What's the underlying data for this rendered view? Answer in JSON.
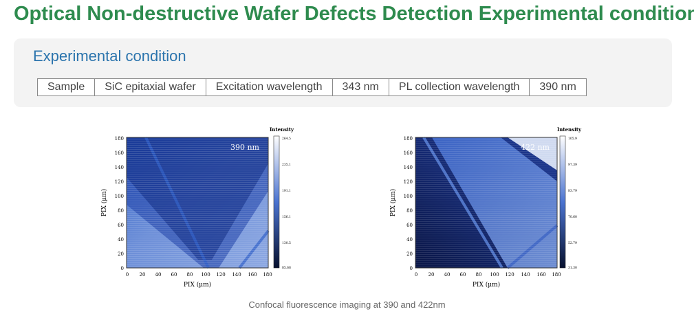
{
  "page_title": "Optical Non-destructive Wafer Defects Detection Experimental condition",
  "section_title": "Experimental condition",
  "conditions": {
    "sample_label": "Sample",
    "sample_value": "SiC epitaxial wafer",
    "excitation_label": "Excitation wavelength",
    "excitation_value": "343 nm",
    "pl_label": "PL collection wavelength",
    "pl_value": "390 nm"
  },
  "figures": [
    {
      "wavelength_label": "390  nm",
      "xlabel": "PIX (μm)",
      "ylabel": "PIX (μm)",
      "x_ticks": [
        "0",
        "20",
        "40",
        "60",
        "80",
        "100",
        "120",
        "140",
        "160",
        "180"
      ],
      "y_ticks": [
        "0",
        "20",
        "40",
        "60",
        "80",
        "100",
        "120",
        "140",
        "160",
        "180"
      ],
      "colorbar_title": "Intensity",
      "colorbar_ticks": [
        "264.5",
        "235.1",
        "191.1",
        "156.1",
        "130.5",
        "85.68"
      ]
    },
    {
      "wavelength_label": "422  nm",
      "xlabel": "PIX (μm)",
      "ylabel": "PIX (μm)",
      "x_ticks": [
        "0",
        "20",
        "40",
        "60",
        "80",
        "100",
        "120",
        "140",
        "160",
        "180"
      ],
      "y_ticks": [
        "0",
        "20",
        "40",
        "60",
        "80",
        "100",
        "120",
        "140",
        "160",
        "180"
      ],
      "colorbar_title": "Intensity",
      "colorbar_ticks": [
        "105.9",
        "97.39",
        "83.79",
        "70.60",
        "52.79",
        "31.30"
      ]
    }
  ],
  "caption": "Confocal fluorescence imaging at 390 and 422nm",
  "colors": {
    "title": "#2e8b4e",
    "section_title": "#2b74ad",
    "map_dark": "#0b1a4a",
    "map_mid": "#2f5fc8",
    "map_light": "#c7d8f6"
  }
}
